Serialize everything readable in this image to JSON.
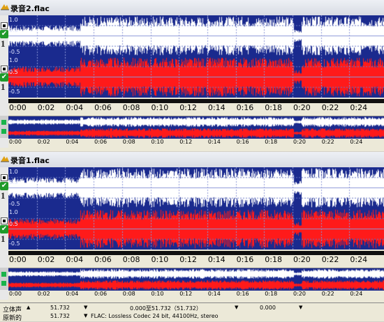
{
  "colors": {
    "background": "#1a2a8e",
    "left_channel": "#ffffff",
    "right_channel": "#ff1a1a",
    "grid": "#6a78c8"
  },
  "panels": [
    {
      "file_name": "录音2.flac",
      "channel_numbers": [
        "1",
        "1"
      ],
      "amp_labels": [
        "1.0",
        "0.5",
        "-0.5",
        "1.0",
        "0.5",
        "-0.5"
      ]
    },
    {
      "file_name": "录音1.flac",
      "channel_numbers": [
        "1",
        "1"
      ],
      "amp_labels": [
        "1.0",
        "0.5",
        "-0.5",
        "1.0",
        "0.5",
        "-0.5"
      ]
    }
  ],
  "time_labels": [
    "0:00",
    "0:02",
    "0:04",
    "0:06",
    "0:08",
    "0:10",
    "0:12",
    "0:14",
    "0:16",
    "0:18",
    "0:20",
    "0:22",
    "0:24"
  ],
  "status": {
    "row1": {
      "mode": "立体声",
      "value1": "51.732",
      "range": "0.000至51.732（51.732）",
      "value2": "0.000"
    },
    "row2": {
      "mode": "原新的",
      "value1": "51.732",
      "format": "FLAC: Lossless Codec 24 bit, 44100Hz, stereo"
    }
  }
}
